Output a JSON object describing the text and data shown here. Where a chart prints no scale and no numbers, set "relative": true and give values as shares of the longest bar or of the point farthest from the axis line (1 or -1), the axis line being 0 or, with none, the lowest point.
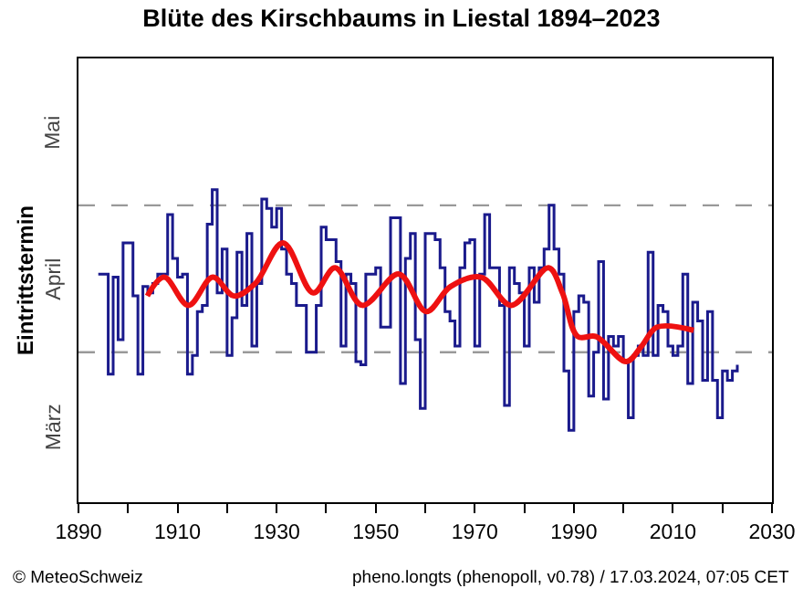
{
  "chart_data": {
    "type": "line",
    "title": "Blüte des Kirschbaums in Liestal 1894–2023",
    "ylabel": "Eintrittstermin",
    "relative": true,
    "xlim": [
      1890,
      2030
    ],
    "xticks": [
      1890,
      {
        "value": 1900,
        "label": null
      },
      1910,
      {
        "value": 1920,
        "label": null
      },
      1930,
      {
        "value": 1940,
        "label": null
      },
      1950,
      {
        "value": 1960,
        "label": null
      },
      1970,
      {
        "value": 1980,
        "label": null
      },
      1990,
      {
        "value": 2000,
        "label": null
      },
      2010,
      {
        "value": 2020,
        "label": null
      },
      2030
    ],
    "ref_lines": [
      {
        "axis": "y",
        "value": 0.48,
        "color": "#999999",
        "line_style": "dashed"
      },
      {
        "axis": "y",
        "value": 0.95,
        "color": "#999999",
        "line_style": "dashed"
      }
    ],
    "series": [
      {
        "type": "step",
        "color": "#1a1a8c",
        "x": [
          1894,
          1895,
          1896,
          1897,
          1898,
          1899,
          1900,
          1901,
          1902,
          1903,
          1904,
          1905,
          1906,
          1907,
          1908,
          1909,
          1910,
          1911,
          1912,
          1913,
          1914,
          1915,
          1916,
          1917,
          1918,
          1919,
          1920,
          1921,
          1922,
          1923,
          1924,
          1925,
          1926,
          1927,
          1928,
          1929,
          1930,
          1931,
          1932,
          1933,
          1934,
          1935,
          1936,
          1937,
          1938,
          1939,
          1940,
          1941,
          1942,
          1943,
          1944,
          1945,
          1946,
          1947,
          1948,
          1949,
          1950,
          1951,
          1952,
          1953,
          1954,
          1955,
          1956,
          1957,
          1958,
          1959,
          1960,
          1961,
          1962,
          1963,
          1964,
          1965,
          1966,
          1967,
          1968,
          1969,
          1970,
          1971,
          1972,
          1973,
          1974,
          1975,
          1976,
          1977,
          1978,
          1979,
          1980,
          1981,
          1982,
          1983,
          1984,
          1985,
          1986,
          1987,
          1988,
          1989,
          1990,
          1991,
          1992,
          1993,
          1994,
          1995,
          1996,
          1997,
          1998,
          1999,
          2000,
          2001,
          2002,
          2003,
          2004,
          2005,
          2006,
          2007,
          2008,
          2009,
          2010,
          2011,
          2012,
          2013,
          2014,
          2015,
          2016,
          2017,
          2018,
          2019,
          2020,
          2021,
          2022,
          2023
        ],
        "values": [
          0.73,
          0.73,
          0.41,
          0.72,
          0.52,
          0.83,
          0.83,
          0.66,
          0.41,
          0.69,
          0.67,
          0.7,
          0.73,
          0.73,
          0.92,
          0.78,
          0.72,
          0.73,
          0.41,
          0.47,
          0.61,
          0.63,
          0.89,
          1,
          0.67,
          0.81,
          0.47,
          0.59,
          0.8,
          0.63,
          0.86,
          0.5,
          0.7,
          0.97,
          0.94,
          0.88,
          0.94,
          0.81,
          0.73,
          0.7,
          0.63,
          0.63,
          0.48,
          0.48,
          0.63,
          0.88,
          0.84,
          0.84,
          0.77,
          0.5,
          0.73,
          0.7,
          0.45,
          0.44,
          0.73,
          0.73,
          0.75,
          0.56,
          0.56,
          0.91,
          0.91,
          0.38,
          0.78,
          0.86,
          0.52,
          0.3,
          0.86,
          0.86,
          0.84,
          0.75,
          0.61,
          0.58,
          0.5,
          0.75,
          0.83,
          0.84,
          0.5,
          0.73,
          0.92,
          0.75,
          0.75,
          0.63,
          0.31,
          0.75,
          0.7,
          0.67,
          0.5,
          0.75,
          0.64,
          0.75,
          0.81,
          0.95,
          0.81,
          0.73,
          0.42,
          0.23,
          0.61,
          0.66,
          0.64,
          0.34,
          0.48,
          0.77,
          0.33,
          0.53,
          0.5,
          0.53,
          0.45,
          0.27,
          0.47,
          0.5,
          0.47,
          0.8,
          0.47,
          0.63,
          0.61,
          0.5,
          0.47,
          0.5,
          0.73,
          0.38,
          0.64,
          0.58,
          0.39,
          0.61,
          0.39,
          0.27,
          0.42,
          0.39,
          0.42,
          0.44
        ]
      },
      {
        "type": "line",
        "color": "#ee1111",
        "x": [
          1903.9,
          1907.3,
          1912.2,
          1917.1,
          1921.4,
          1925.7,
          1931.3,
          1937.4,
          1941.8,
          1947.3,
          1954.7,
          1960.2,
          1965.1,
          1971.3,
          1977.4,
          1984.9,
          1987.7,
          1990.8,
          1994.5,
          2000.6,
          2003.7,
          2006.8,
          2014.2
        ],
        "values": [
          0.66,
          0.72,
          0.63,
          0.72,
          0.66,
          0.7,
          0.83,
          0.67,
          0.75,
          0.63,
          0.73,
          0.61,
          0.69,
          0.72,
          0.63,
          0.75,
          0.67,
          0.53,
          0.53,
          0.45,
          0.5,
          0.56,
          0.55
        ]
      }
    ],
    "annotations": [
      "März",
      "April",
      "Mai",
      "© MeteoSchweiz",
      "pheno.longts (phenopoll, v0.78) / 17.03.2024, 07:05 CET"
    ]
  }
}
